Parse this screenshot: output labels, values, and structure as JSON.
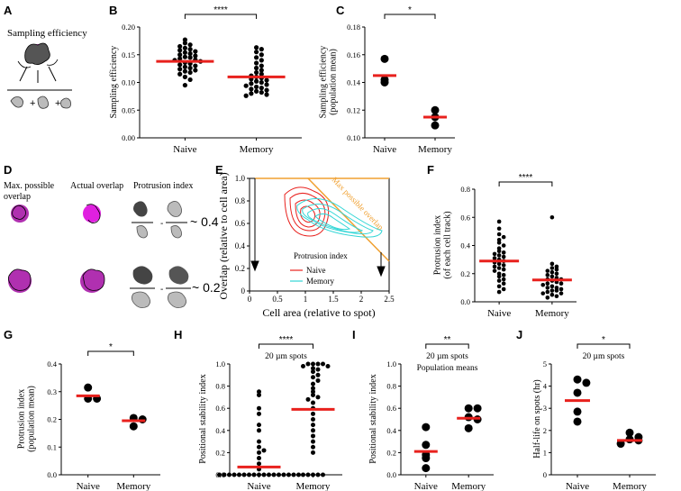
{
  "colors": {
    "mean_line": "#e8211d",
    "dot": "#000000",
    "axis": "#000000",
    "magenta": "#e020e0",
    "purple": "#b030b0",
    "naive": "#e8211d",
    "memory": "#33d6d6",
    "max_line": "#f0a030",
    "cell_light": "#bdbdbd",
    "cell_dark": "#555555"
  },
  "panels": {
    "A": {
      "letter": "A",
      "title": "Sampling efficiency"
    },
    "D": {
      "letter": "D",
      "max_label_1": "Max. possible",
      "max_label_2": "overlap",
      "actual_label": "Actual overlap",
      "protrusion_label": "Protrusion index",
      "value_top": "~ 0.4",
      "value_bottom": "~ 0.2"
    },
    "E": {
      "letter": "E",
      "xlabel": "Cell area (relative to spot)",
      "ylabel": "Overlap (relative to cell area)",
      "xticks": [
        "0",
        "0.5",
        "1",
        "1.5",
        "2",
        "2.5"
      ],
      "yticks": [
        "0",
        "0.2",
        "0.4",
        "0.6",
        "0.8",
        "1.0"
      ],
      "xlim": [
        0,
        2.5
      ],
      "ylim": [
        0,
        1
      ],
      "max_label": "Max possible overlap",
      "protrusion_label": "Protrusion index",
      "legend": [
        {
          "name": "Naive",
          "color": "#e8211d"
        },
        {
          "name": "Memory",
          "color": "#33d6d6"
        }
      ]
    }
  },
  "chart_data": [
    {
      "id": "B",
      "letter": "B",
      "type": "scatter",
      "categories": [
        "Naive",
        "Memory"
      ],
      "ylabel": [
        "Sampling efficiency"
      ],
      "ylim": [
        0,
        0.2
      ],
      "yticks": [
        "0.00",
        "0.05",
        "0.10",
        "0.15",
        "0.20"
      ],
      "significance": "****",
      "means": [
        0.138,
        0.11
      ],
      "points": [
        [
          0.177,
          0.171,
          0.168,
          0.165,
          0.162,
          0.16,
          0.158,
          0.156,
          0.154,
          0.152,
          0.15,
          0.148,
          0.146,
          0.145,
          0.143,
          0.141,
          0.14,
          0.138,
          0.136,
          0.134,
          0.132,
          0.13,
          0.128,
          0.126,
          0.124,
          0.122,
          0.12,
          0.118,
          0.115,
          0.11,
          0.105,
          0.095
        ],
        [
          0.163,
          0.16,
          0.155,
          0.15,
          0.145,
          0.14,
          0.135,
          0.13,
          0.126,
          0.122,
          0.118,
          0.115,
          0.112,
          0.11,
          0.108,
          0.106,
          0.104,
          0.102,
          0.1,
          0.098,
          0.096,
          0.094,
          0.092,
          0.09,
          0.088,
          0.086,
          0.084,
          0.082,
          0.08,
          0.078,
          0.076
        ]
      ]
    },
    {
      "id": "C",
      "letter": "C",
      "type": "scatter",
      "categories": [
        "Naive",
        "Memory"
      ],
      "ylabel": [
        "Sampling efficiency",
        "(population mean)"
      ],
      "ylim": [
        0.1,
        0.18
      ],
      "yticks": [
        "0.10",
        "0.12",
        "0.14",
        "0.16",
        "0.18"
      ],
      "significance": "*",
      "means": [
        0.145,
        0.115
      ],
      "points": [
        [
          0.157,
          0.142,
          0.14
        ],
        [
          0.12,
          0.115,
          0.109
        ]
      ]
    },
    {
      "id": "F",
      "letter": "F",
      "type": "scatter",
      "categories": [
        "Naive",
        "Memory"
      ],
      "ylabel": [
        "Protrusion index",
        "(of each cell track)"
      ],
      "ylim": [
        0,
        0.8
      ],
      "yticks": [
        "0.0",
        "0.2",
        "0.4",
        "0.6",
        "0.8"
      ],
      "significance": "****",
      "means": [
        0.29,
        0.155
      ],
      "points": [
        [
          0.57,
          0.52,
          0.48,
          0.46,
          0.44,
          0.42,
          0.4,
          0.38,
          0.36,
          0.35,
          0.34,
          0.33,
          0.32,
          0.31,
          0.3,
          0.29,
          0.28,
          0.27,
          0.26,
          0.25,
          0.24,
          0.23,
          0.22,
          0.2,
          0.19,
          0.18,
          0.16,
          0.15,
          0.13,
          0.11,
          0.09,
          0.07
        ],
        [
          0.6,
          0.27,
          0.25,
          0.24,
          0.23,
          0.22,
          0.21,
          0.2,
          0.19,
          0.18,
          0.17,
          0.16,
          0.16,
          0.15,
          0.14,
          0.13,
          0.13,
          0.12,
          0.11,
          0.1,
          0.1,
          0.09,
          0.08,
          0.08,
          0.07,
          0.06,
          0.06,
          0.05,
          0.04,
          0.03
        ]
      ]
    },
    {
      "id": "G",
      "letter": "G",
      "type": "scatter",
      "categories": [
        "Naive",
        "Memory"
      ],
      "ylabel": [
        "Protrusion index",
        "(population mean)"
      ],
      "ylim": [
        0,
        0.4
      ],
      "yticks": [
        "0.0",
        "0.1",
        "0.2",
        "0.3",
        "0.4"
      ],
      "significance": "*",
      "means": [
        0.285,
        0.195
      ],
      "points": [
        [
          0.315,
          0.275,
          0.275
        ],
        [
          0.205,
          0.2,
          0.175
        ]
      ]
    },
    {
      "id": "H",
      "letter": "H",
      "type": "scatter",
      "categories": [
        "Naive",
        "Memory"
      ],
      "ylabel": [
        "Positional stability index"
      ],
      "ylim": [
        0,
        1
      ],
      "yticks": [
        "0.0",
        "0.2",
        "0.4",
        "0.6",
        "0.8",
        "1.0"
      ],
      "significance": "****",
      "annotation": "20 µm spots",
      "means": [
        0.07,
        0.59
      ],
      "points": [
        [
          0.75,
          0.72,
          0.6,
          0.55,
          0.45,
          0.4,
          0.3,
          0.25,
          0.22,
          0.2,
          0.15,
          0.1,
          0.05,
          0,
          0,
          0,
          0,
          0,
          0,
          0,
          0,
          0,
          0,
          0,
          0,
          0,
          0,
          0,
          0,
          0
        ],
        [
          1,
          1,
          1,
          1,
          0.98,
          0.98,
          0.96,
          0.95,
          0.93,
          0.9,
          0.88,
          0.85,
          0.82,
          0.78,
          0.75,
          0.72,
          0.7,
          0.68,
          0.65,
          0.6,
          0.55,
          0.5,
          0.45,
          0.4,
          0.35,
          0.3,
          0.25,
          0.2,
          0,
          0,
          0,
          0,
          0
        ]
      ]
    },
    {
      "id": "I",
      "letter": "I",
      "type": "scatter",
      "categories": [
        "Naive",
        "Memory"
      ],
      "ylabel": [
        "Positional stability index"
      ],
      "ylim": [
        0,
        1
      ],
      "yticks": [
        "0.0",
        "0.2",
        "0.4",
        "0.6",
        "0.8",
        "1.0"
      ],
      "significance": "**",
      "annotation": [
        "20 µm spots",
        "Population means"
      ],
      "means": [
        0.21,
        0.51
      ],
      "points": [
        [
          0.43,
          0.27,
          0.18,
          0.15,
          0.06
        ],
        [
          0.6,
          0.6,
          0.52,
          0.5,
          0.42
        ]
      ]
    },
    {
      "id": "J",
      "letter": "J",
      "type": "scatter",
      "categories": [
        "Naive",
        "Memory"
      ],
      "ylabel": [
        "Half-life on spots (hr)"
      ],
      "ylim": [
        0,
        5
      ],
      "yticks": [
        "0",
        "1",
        "2",
        "3",
        "4",
        "5"
      ],
      "significance": "*",
      "annotation": "20 µm spots",
      "means": [
        3.35,
        1.55
      ],
      "points": [
        [
          4.3,
          4.15,
          3.7,
          2.85,
          2.4
        ],
        [
          1.9,
          1.7,
          1.6,
          1.55,
          1.4
        ]
      ]
    }
  ]
}
